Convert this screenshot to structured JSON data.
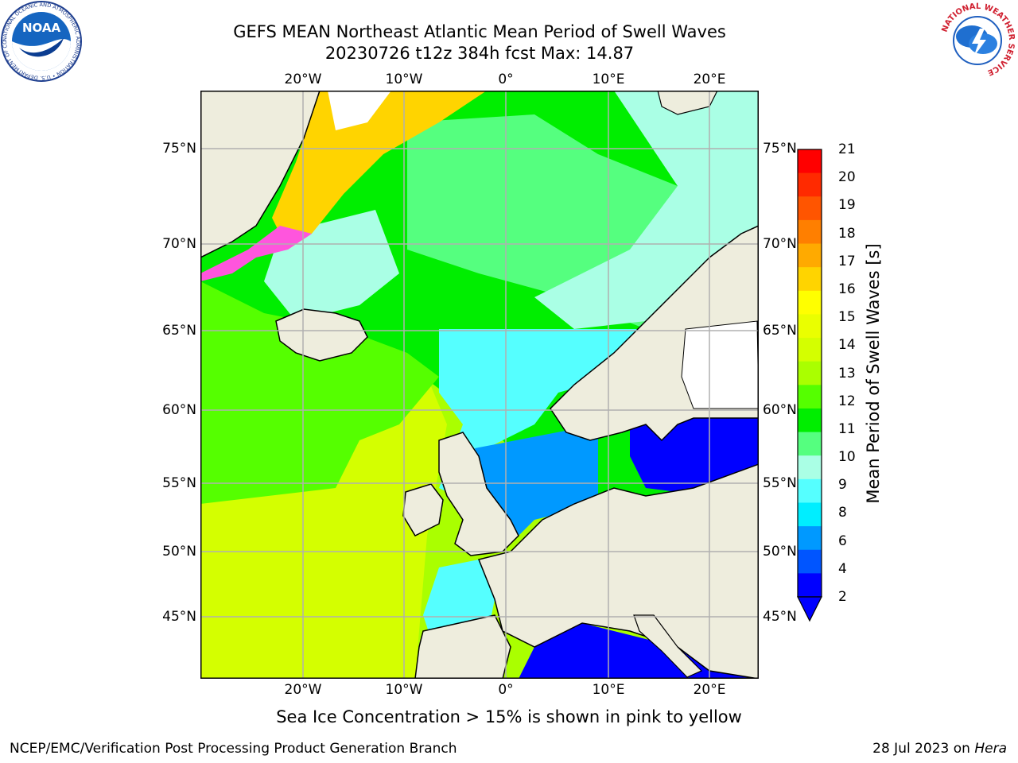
{
  "header": {
    "title_line1": "GEFS MEAN Northeast Atlantic Mean Period of Swell Waves",
    "title_line2": "20230726 t12z 384h fcst   Max: 14.87"
  },
  "map": {
    "lon_labels": [
      "20°W",
      "10°W",
      "0°",
      "10°E",
      "20°E"
    ],
    "lat_labels": [
      "75°N",
      "70°N",
      "65°N",
      "60°N",
      "55°N",
      "50°N",
      "45°N"
    ],
    "colors": {
      "land": "#eeeddd",
      "ice_white": "#ffffff",
      "grid": "#b0b0b0"
    }
  },
  "colorbar": {
    "label": "Mean Period of Swell Waves [s]",
    "ticks": [
      "21",
      "20",
      "19",
      "18",
      "17",
      "16",
      "15",
      "14",
      "13",
      "12",
      "11",
      "10",
      "9",
      "8",
      "6",
      "4",
      "2"
    ],
    "colors": [
      "#ff0000",
      "#ff2a00",
      "#ff5500",
      "#ff7f00",
      "#ffaa00",
      "#ffd400",
      "#ffff00",
      "#eaff00",
      "#d4ff00",
      "#aaff00",
      "#55ff00",
      "#00ee00",
      "#55ff7f",
      "#aaffe5",
      "#55ffff",
      "#00eeff",
      "#0099ff",
      "#0055ff",
      "#0000ff"
    ]
  },
  "footer": {
    "ice_note": "Sea Ice Concentration > 15% is shown in pink to yellow",
    "credit": "NCEP/EMC/Verification Post Processing Product Generation Branch",
    "date_prefix": "28 Jul 2023 on ",
    "date_machine": "Hera"
  },
  "logos": {
    "noaa_text": "NOAA",
    "noaa_ring": "NATIONAL OCEANIC AND ATMOSPHERIC ADMINISTRATION • U.S. DEPARTMENT OF COMMERCE",
    "nws_ring": "NATIONAL WEATHER SERVICE"
  }
}
